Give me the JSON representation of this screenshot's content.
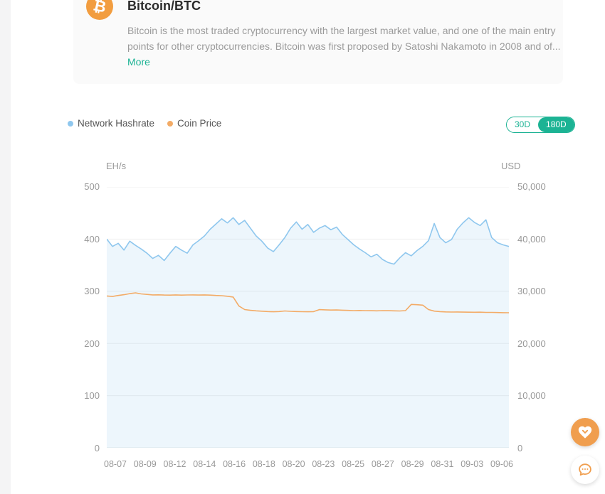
{
  "coin_card": {
    "title": "Bitcoin/BTC",
    "icon": "bitcoin-icon",
    "icon_glyph": "₿",
    "icon_color": "#f29d3f",
    "description": "Bitcoin is the most traded cryptocurrency with the largest market value, and one of the main entry points for other cryptocurrencies. Bitcoin was first proposed by Satoshi Nakamoto in 2008 and of...",
    "more_label": "More"
  },
  "chart_controls": {
    "legend": [
      {
        "label": "Network Hashrate",
        "color": "#8fc7ee"
      },
      {
        "label": "Coin Price",
        "color": "#f3ab66"
      }
    ],
    "periods": [
      {
        "label": "30D",
        "active": false
      },
      {
        "label": "180D",
        "active": true
      }
    ],
    "accent_color": "#1cb394"
  },
  "chart_data": {
    "type": "line",
    "left_axis": {
      "label": "EH/s",
      "ticks": [
        "500",
        "400",
        "300",
        "200",
        "100",
        "0"
      ],
      "range": [
        0,
        500
      ]
    },
    "right_axis": {
      "label": "USD",
      "ticks": [
        "50,000",
        "40,000",
        "30,000",
        "20,000",
        "10,000",
        "0"
      ],
      "range": [
        0,
        50000
      ]
    },
    "x_tick_labels": [
      "08-07",
      "08-09",
      "08-12",
      "08-14",
      "08-16",
      "08-18",
      "08-20",
      "08-23",
      "08-25",
      "08-27",
      "08-29",
      "08-31",
      "09-03",
      "09-06"
    ],
    "grid": true,
    "legend_position": "top-left",
    "series": [
      {
        "name": "Network Hashrate",
        "axis": "left",
        "color": "#8fc7ee",
        "fill": "rgba(143,199,238,0.16)",
        "values": [
          400,
          386,
          392,
          379,
          396,
          388,
          381,
          373,
          363,
          369,
          359,
          373,
          386,
          379,
          373,
          389,
          397,
          406,
          419,
          429,
          439,
          431,
          441,
          428,
          436,
          421,
          406,
          396,
          383,
          376,
          389,
          403,
          421,
          433,
          419,
          428,
          413,
          421,
          426,
          418,
          423,
          409,
          399,
          389,
          381,
          374,
          366,
          371,
          361,
          355,
          352,
          364,
          374,
          368,
          378,
          386,
          397,
          430,
          403,
          393,
          399,
          419,
          431,
          441,
          432,
          426,
          437,
          403,
          393,
          389,
          386
        ]
      },
      {
        "name": "Coin Price",
        "axis": "right",
        "color": "#f3ab66",
        "fill": null,
        "values": [
          29100,
          29000,
          29200,
          29350,
          29550,
          29700,
          29500,
          29400,
          29300,
          29320,
          29280,
          29260,
          29300,
          29270,
          29290,
          29310,
          29280,
          29300,
          29260,
          29200,
          29150,
          29050,
          28900,
          27200,
          26500,
          26350,
          26250,
          26180,
          26120,
          26080,
          26120,
          26220,
          26160,
          26120,
          26090,
          26070,
          26110,
          26480,
          26440,
          26400,
          26420,
          26380,
          26340,
          26300,
          26320,
          26300,
          26280,
          26260,
          26300,
          26280,
          26260,
          26220,
          26300,
          27480,
          27420,
          27340,
          26500,
          26200,
          26100,
          26050,
          26020,
          26040,
          26010,
          26000,
          25980,
          26000,
          25960,
          25950,
          25930,
          25900,
          25880
        ]
      }
    ]
  },
  "floating_buttons": [
    {
      "name": "feedback-button",
      "icon": "heart-icon",
      "bg": "#f09e4e"
    },
    {
      "name": "support-chat-button",
      "icon": "chat-icon",
      "bg": "#ffffff"
    }
  ]
}
